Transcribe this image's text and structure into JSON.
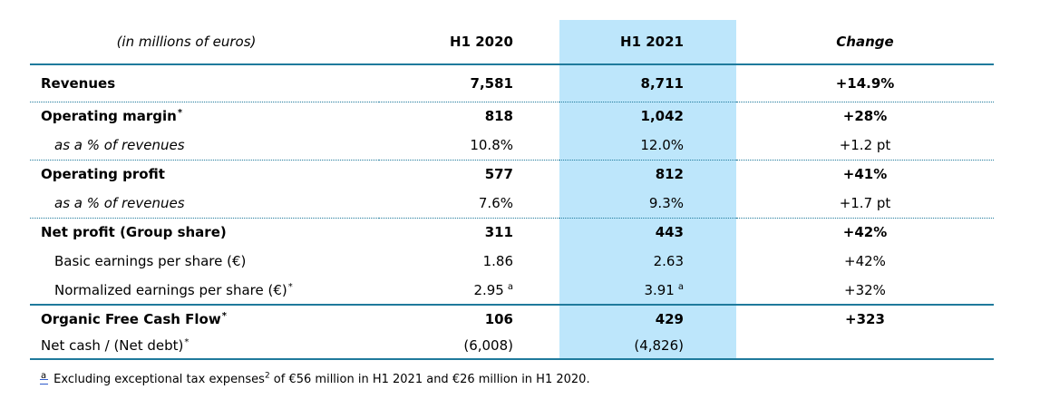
{
  "colors": {
    "line": "#1F7A9C",
    "highlight": "#BDE6FB",
    "footnote_marker_underline": "#2E5BCC",
    "text": "#000000"
  },
  "header": {
    "unit_label": "(in millions of euros)",
    "col_h1_2020": "H1 2020",
    "col_h1_2021": "H1 2021",
    "col_change": "Change"
  },
  "rows": [
    {
      "label": "Revenues",
      "h1_2020": "7,581",
      "h1_2021": "8,711",
      "change": "+14.9%"
    },
    {
      "label": "Operating margin",
      "label_sup": "*",
      "h1_2020": "818",
      "h1_2021": "1,042",
      "change": "+28%"
    },
    {
      "label": "as a % of revenues",
      "h1_2020": "10.8%",
      "h1_2021": "12.0%",
      "change": "+1.2 pt"
    },
    {
      "label": "Operating profit",
      "h1_2020": "577",
      "h1_2021": "812",
      "change": "+41%"
    },
    {
      "label": "as a % of revenues",
      "h1_2020": "7.6%",
      "h1_2021": "9.3%",
      "change": "+1.7 pt"
    },
    {
      "label": "Net profit (Group share)",
      "h1_2020": "311",
      "h1_2021": "443",
      "change": "+42%"
    },
    {
      "label": "Basic earnings per share (€)",
      "h1_2020": "1.86",
      "h1_2021": "2.63",
      "change": "+42%"
    },
    {
      "label": "Normalized earnings per share (€)",
      "label_sup": "*",
      "h1_2020": "2.95",
      "h1_2020_sup": "a",
      "h1_2021": "3.91",
      "h1_2021_sup": "a",
      "change": "+32%"
    },
    {
      "label": "Organic Free Cash Flow",
      "label_sup": "*",
      "h1_2020": "106",
      "h1_2021": "429",
      "change": "+323"
    },
    {
      "label": "Net cash / (Net debt)",
      "label_sup": "*",
      "h1_2020": "(6,008)",
      "h1_2021": "(4,826)",
      "change": ""
    }
  ],
  "footnote": {
    "marker": "a",
    "text_before_sup": "Excluding exceptional tax expenses",
    "sup": "2",
    "text_after_sup": " of €56 million in H1 2021 and €26 million in H1 2020."
  }
}
